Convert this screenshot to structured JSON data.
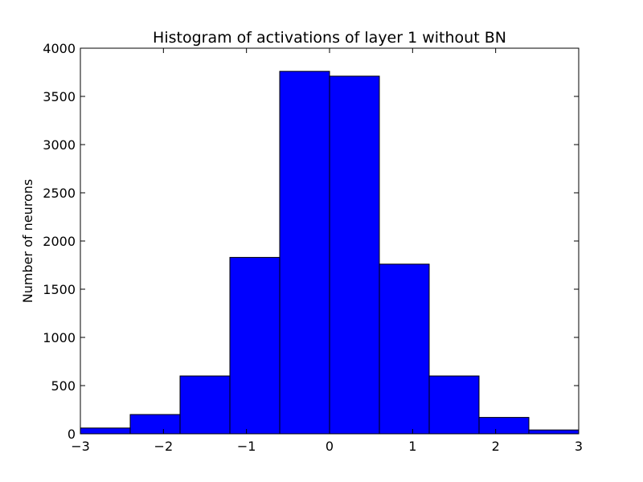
{
  "chart_data": {
    "type": "bar",
    "title": "Histogram of activations of layer 1  without BN",
    "xlabel": "",
    "ylabel": "Number of neurons",
    "xlim": [
      -3,
      3
    ],
    "ylim": [
      0,
      4000
    ],
    "bin_edges": [
      -3,
      -2.4,
      -1.8,
      -1.2,
      -0.6,
      0,
      0.6,
      1.2,
      1.8,
      2.4,
      3
    ],
    "values": [
      60,
      200,
      600,
      1830,
      3760,
      3710,
      1760,
      600,
      170,
      40
    ],
    "x_ticks": [
      -3,
      -2,
      -1,
      0,
      1,
      2,
      3
    ],
    "x_tick_labels": [
      "−3",
      "−2",
      "−1",
      "0",
      "1",
      "2",
      "3"
    ],
    "y_ticks": [
      0,
      500,
      1000,
      1500,
      2000,
      2500,
      3000,
      3500,
      4000
    ],
    "y_tick_labels": [
      "0",
      "500",
      "1000",
      "1500",
      "2000",
      "2500",
      "3000",
      "3500",
      "4000"
    ],
    "grid": false,
    "bar_color": "#0000ff",
    "edge_color": "#000000"
  }
}
